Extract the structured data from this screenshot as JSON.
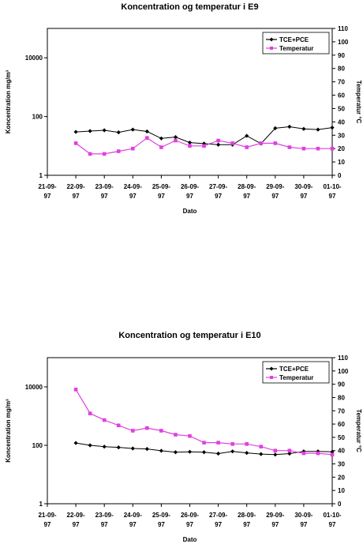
{
  "chart_data": [
    {
      "type": "line",
      "title": "Koncentration og temperatur i E9",
      "xlabel": "Dato",
      "ylabel_left": "Koncentration mg/m³",
      "ylabel_right": "Temperatur °C",
      "x_ticks": [
        "21-09-97",
        "22-09-97",
        "23-09-97",
        "24-09-97",
        "25-09-97",
        "26-09-97",
        "27-09-97",
        "28-09-97",
        "29-09-97",
        "30-09-97",
        "01-10-97"
      ],
      "x_range": [
        0,
        10
      ],
      "y_left_scale": "log",
      "y_left_range": [
        1,
        100000
      ],
      "y_left_ticks": [
        1,
        100,
        10000
      ],
      "y_right_range": [
        0,
        110
      ],
      "y_right_ticks": [
        0,
        10,
        20,
        30,
        40,
        50,
        60,
        70,
        80,
        90,
        100,
        110
      ],
      "legend_position": "top-right",
      "series": [
        {
          "name": "TCE+PCE",
          "axis": "left",
          "color": "#000000",
          "marker": "diamond",
          "x": [
            1,
            1.5,
            2,
            2.5,
            3,
            3.5,
            4,
            4.5,
            5,
            5.5,
            6,
            6.5,
            7,
            7.5,
            8,
            8.5,
            9,
            9.5,
            10
          ],
          "y": [
            30,
            32,
            34,
            29,
            36,
            31,
            18,
            20,
            13,
            12,
            11,
            11,
            22,
            12,
            40,
            45,
            38,
            36,
            42
          ]
        },
        {
          "name": "Temperatur",
          "axis": "right",
          "color": "#e040e0",
          "marker": "square",
          "x": [
            1,
            1.5,
            2,
            2.5,
            3,
            3.5,
            4,
            4.5,
            5,
            5.5,
            6,
            6.5,
            7,
            7.5,
            8,
            8.5,
            9,
            9.5,
            10
          ],
          "y": [
            24,
            16,
            16,
            18,
            20,
            28,
            21,
            26,
            22,
            22,
            26,
            24,
            21,
            24,
            24,
            21,
            20,
            20,
            20
          ]
        }
      ]
    },
    {
      "type": "line",
      "title": "Koncentration og temperatur i E10",
      "xlabel": "Dato",
      "ylabel_left": "Koncentration mg/m³",
      "ylabel_right": "Temperatur °C",
      "x_ticks": [
        "21-09-97",
        "22-09-97",
        "23-09-97",
        "24-09-97",
        "25-09-97",
        "26-09-97",
        "27-09-97",
        "28-09-97",
        "29-09-97",
        "30-09-97",
        "01-10-97"
      ],
      "x_range": [
        0,
        10
      ],
      "y_left_scale": "log",
      "y_left_range": [
        1,
        100000
      ],
      "y_left_ticks": [
        1,
        100,
        10000
      ],
      "y_right_range": [
        0,
        110
      ],
      "y_right_ticks": [
        0,
        10,
        20,
        30,
        40,
        50,
        60,
        70,
        80,
        90,
        100,
        110
      ],
      "legend_position": "top-right",
      "series": [
        {
          "name": "TCE+PCE",
          "axis": "left",
          "color": "#000000",
          "marker": "diamond",
          "x": [
            1,
            1.5,
            2,
            2.5,
            3,
            3.5,
            4,
            4.5,
            5,
            5.5,
            6,
            6.5,
            7,
            7.5,
            8,
            8.5,
            9,
            9.5,
            10
          ],
          "y": [
            120,
            100,
            90,
            85,
            78,
            75,
            65,
            58,
            60,
            58,
            52,
            62,
            55,
            50,
            48,
            52,
            62,
            62,
            60
          ]
        },
        {
          "name": "Temperatur",
          "axis": "right",
          "color": "#e040e0",
          "marker": "square",
          "x": [
            1,
            1.5,
            2,
            2.5,
            3,
            3.5,
            4,
            4.5,
            5,
            5.5,
            6,
            6.5,
            7,
            7.5,
            8,
            8.5,
            9,
            9.5,
            10
          ],
          "y": [
            86,
            68,
            63,
            59,
            55,
            57,
            55,
            52,
            51,
            46,
            46,
            45,
            45,
            43,
            40,
            40,
            38,
            38,
            37
          ]
        }
      ]
    }
  ]
}
